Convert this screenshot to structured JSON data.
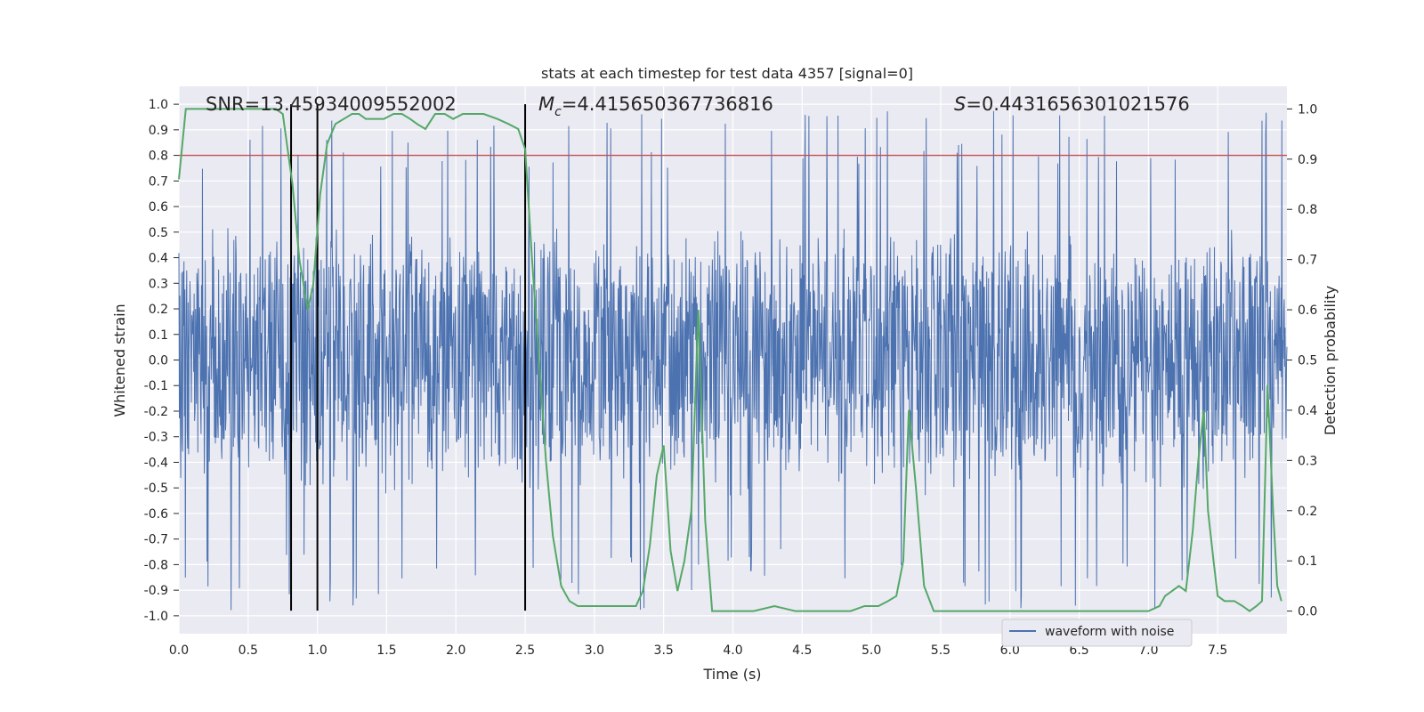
{
  "chart_data": {
    "type": "line",
    "title": "stats at each timestep for test data 4357 [signal=0]",
    "xlabel": "Time (s)",
    "ylabel_left": "Whitened strain",
    "ylabel_right": "Detection probability",
    "xlim": [
      0.0,
      8.0
    ],
    "ylim_left": [
      -1.07,
      1.07
    ],
    "ylim_right": [
      -0.045,
      1.045
    ],
    "x_ticks": [
      "0.0",
      "0.5",
      "1.0",
      "1.5",
      "2.0",
      "2.5",
      "3.0",
      "3.5",
      "4.0",
      "4.5",
      "5.0",
      "5.5",
      "6.0",
      "6.5",
      "7.0",
      "7.5"
    ],
    "y_ticks_left": [
      "1.0",
      "0.9",
      "0.8",
      "0.7",
      "0.6",
      "0.5",
      "0.4",
      "0.3",
      "0.2",
      "0.1",
      "0.0",
      "-0.1",
      "-0.2",
      "-0.3",
      "-0.4",
      "-0.5",
      "-0.6",
      "-0.7",
      "-0.8",
      "-0.9",
      "-1.0"
    ],
    "y_ticks_right": [
      "1.0",
      "0.9",
      "0.8",
      "0.7",
      "0.6",
      "0.5",
      "0.4",
      "0.3",
      "0.2",
      "0.1",
      "0.0"
    ],
    "annotations": {
      "snr": "SNR=13.45934009552002",
      "mc_symbol": "M",
      "mc_sub": "c",
      "mc_value": "=4.415650367736816",
      "s_symbol": "S",
      "s_value": "=0.4431656301021576"
    },
    "threshold": {
      "value": 0.8,
      "axis": "left",
      "color": "#c44e52"
    },
    "vlines": [
      0.81,
      1.0,
      2.5
    ],
    "legend": {
      "label": "waveform with noise",
      "location": "lower-right"
    },
    "series": [
      {
        "name": "waveform with noise",
        "axis": "left",
        "color": "#4c72b0",
        "style": "dense noisy waveform, typical envelope about -0.55 to 0.55, peaks to about +/-0.98",
        "envelope_amplitude": 0.55,
        "peak_amplitude": 0.98
      },
      {
        "name": "detection probability",
        "axis": "right",
        "color": "#55a868",
        "x": [
          0.0,
          0.05,
          0.1,
          0.2,
          0.3,
          0.4,
          0.5,
          0.6,
          0.7,
          0.75,
          0.82,
          0.87,
          0.93,
          0.97,
          1.02,
          1.07,
          1.13,
          1.19,
          1.25,
          1.3,
          1.35,
          1.42,
          1.48,
          1.55,
          1.61,
          1.67,
          1.72,
          1.78,
          1.85,
          1.92,
          1.98,
          2.05,
          2.12,
          2.2,
          2.3,
          2.38,
          2.45,
          2.5,
          2.55,
          2.6,
          2.65,
          2.7,
          2.76,
          2.82,
          2.88,
          2.95,
          3.0,
          3.1,
          3.2,
          3.3,
          3.35,
          3.4,
          3.45,
          3.5,
          3.55,
          3.6,
          3.65,
          3.7,
          3.75,
          3.8,
          3.85,
          3.95,
          4.05,
          4.15,
          4.3,
          4.45,
          4.6,
          4.7,
          4.85,
          4.95,
          5.05,
          5.12,
          5.18,
          5.23,
          5.27,
          5.32,
          5.38,
          5.45,
          5.6,
          5.8,
          6.0,
          6.2,
          6.4,
          6.6,
          6.8,
          7.0,
          7.08,
          7.12,
          7.17,
          7.22,
          7.27,
          7.32,
          7.36,
          7.4,
          7.43,
          7.47,
          7.5,
          7.55,
          7.62,
          7.68,
          7.73,
          7.78,
          7.82,
          7.86,
          7.9,
          7.93,
          7.96
        ],
        "values": [
          0.86,
          1.0,
          1.0,
          1.0,
          1.0,
          1.0,
          1.0,
          1.0,
          1.0,
          0.99,
          0.85,
          0.7,
          0.6,
          0.65,
          0.83,
          0.93,
          0.97,
          0.98,
          0.99,
          0.99,
          0.98,
          0.98,
          0.98,
          0.99,
          0.99,
          0.98,
          0.97,
          0.96,
          0.99,
          0.99,
          0.98,
          0.99,
          0.99,
          0.99,
          0.98,
          0.97,
          0.96,
          0.92,
          0.7,
          0.5,
          0.3,
          0.15,
          0.05,
          0.02,
          0.01,
          0.01,
          0.01,
          0.01,
          0.01,
          0.01,
          0.04,
          0.13,
          0.27,
          0.33,
          0.12,
          0.04,
          0.1,
          0.2,
          0.6,
          0.18,
          0.0,
          0.0,
          0.0,
          0.0,
          0.01,
          0.0,
          0.0,
          0.0,
          0.0,
          0.01,
          0.01,
          0.02,
          0.03,
          0.1,
          0.4,
          0.25,
          0.05,
          0.0,
          0.0,
          0.0,
          0.0,
          0.0,
          0.0,
          0.0,
          0.0,
          0.0,
          0.01,
          0.03,
          0.04,
          0.05,
          0.04,
          0.16,
          0.3,
          0.4,
          0.2,
          0.1,
          0.03,
          0.02,
          0.02,
          0.01,
          0.0,
          0.01,
          0.02,
          0.45,
          0.2,
          0.05,
          0.02
        ]
      }
    ]
  }
}
